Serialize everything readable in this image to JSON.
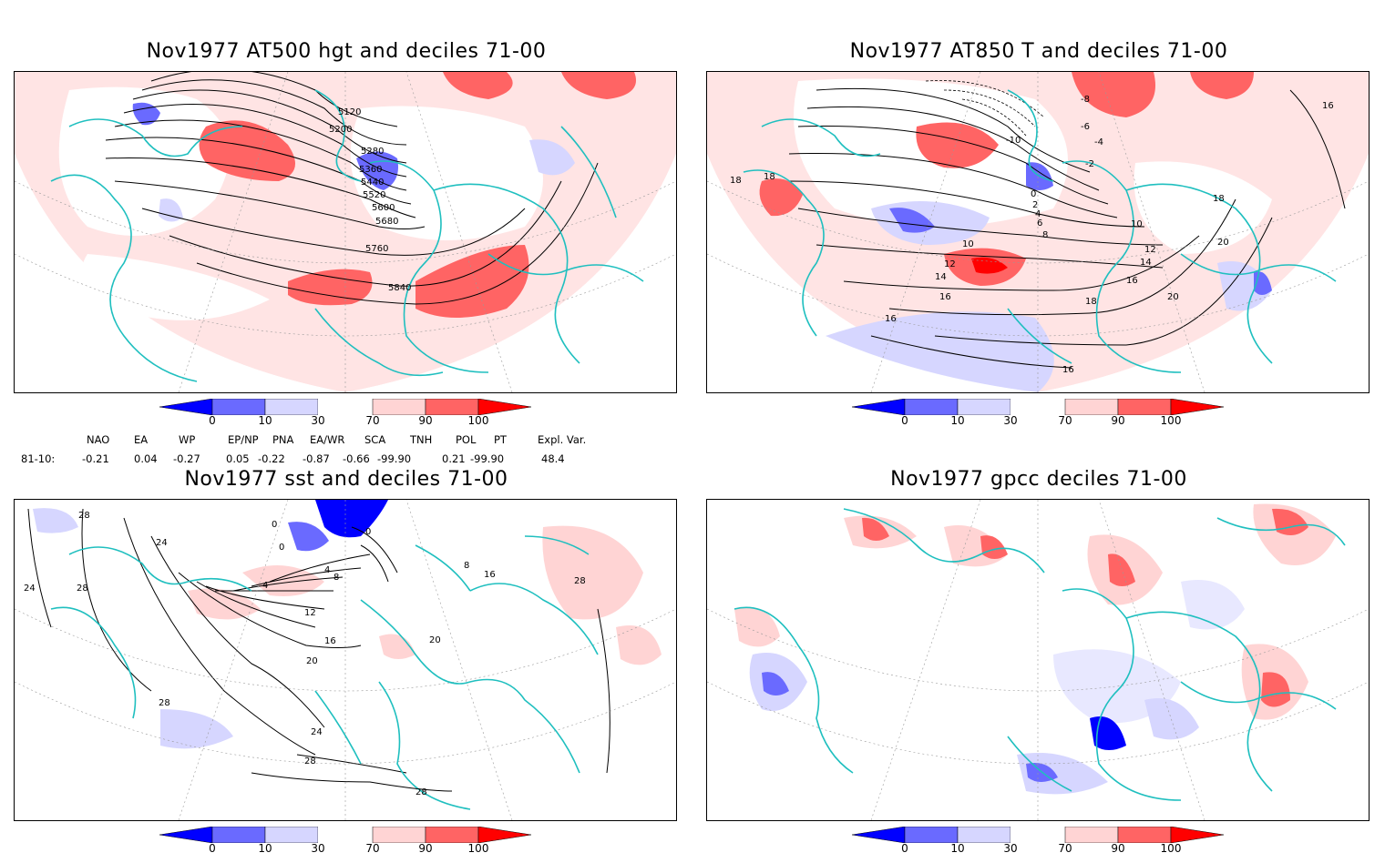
{
  "panels": [
    {
      "title": "Nov1977 AT500 hgt and deciles 71-00",
      "contour_labels": [
        "5120",
        "5200",
        "5280",
        "5360",
        "5440",
        "5520",
        "5600",
        "5680",
        "5760",
        "5840"
      ]
    },
    {
      "title": "Nov1977 AT850 T and deciles 71-00",
      "contour_labels": [
        "-8",
        "-6",
        "-4",
        "-2",
        "0",
        "2",
        "4",
        "6",
        "8",
        "10",
        "10",
        "12",
        "12",
        "14",
        "14",
        "16",
        "16",
        "16",
        "16",
        "16",
        "18",
        "18",
        "18",
        "18",
        "20",
        "20",
        "-10"
      ]
    },
    {
      "title": "Nov1977 sst and deciles 71-00",
      "contour_labels": [
        "28",
        "24",
        "24",
        "28",
        "28",
        "0",
        "0",
        "0",
        "4",
        "4",
        "8",
        "12",
        "16",
        "20",
        "20",
        "24",
        "28",
        "28",
        "28",
        "16",
        "8"
      ]
    },
    {
      "title": "Nov1977 gpcc deciles 71-00",
      "contour_labels": []
    }
  ],
  "colorbar": {
    "ticks": [
      "0",
      "10",
      "30",
      "70",
      "90",
      "100"
    ],
    "colors": [
      "#0000ff",
      "#6a6aff",
      "#d6d6ff",
      "#ffffff",
      "#ffd4d4",
      "#ff6464",
      "#ff0000"
    ]
  },
  "indices": {
    "headers": [
      "NAO",
      "EA",
      "WP",
      "EP/NP",
      "PNA",
      "EA/WR",
      "SCA",
      "TNH",
      "POL",
      "PT",
      "Expl. Var."
    ],
    "row_label": "81-10:",
    "values": [
      "-0.21",
      "0.04",
      "-0.27",
      "0.05",
      "-0.22",
      "-0.87",
      "-0.66",
      "-99.90",
      "0.21",
      "-99.90",
      "48.4"
    ]
  }
}
